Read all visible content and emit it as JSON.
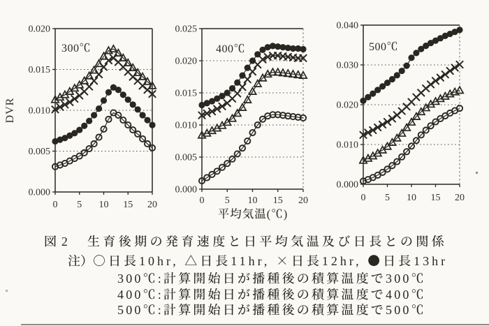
{
  "page": {
    "background": "#faf9f6",
    "ink": "#29271f"
  },
  "figure": {
    "ylabel": "DVR",
    "xlabel": "平均気温(℃)",
    "caption": {
      "fig_label": "図 2",
      "title": "生育後期の発育速度と日平均気温及び日長との関係",
      "note_label": "注）",
      "legend_line": "○日長10hr, △日長11hr, ×日長12hr, ●日長13hr",
      "notes": [
        "300℃:計算開始日が播種後の積算温度で300℃",
        "400℃:計算開始日が播種後の積算温度で400℃",
        "500℃:計算開始日が播種後の積算温度で500℃"
      ]
    }
  },
  "chart_data": [
    {
      "type": "scatter",
      "title": "300℃",
      "xlabel": "平均気温(℃)",
      "ylabel": "DVR",
      "xlim": [
        0,
        20
      ],
      "ylim": [
        0,
        0.02
      ],
      "x_ticks": [
        0,
        5,
        10,
        15,
        20
      ],
      "y_ticks": [
        "0.000",
        "0.005",
        "0.010",
        "0.015",
        "0.020"
      ],
      "grid": true,
      "legend_position": "none",
      "x": [
        0,
        1,
        2,
        3,
        4,
        5,
        6,
        7,
        8,
        9,
        10,
        11,
        12,
        13,
        14,
        15,
        16,
        17,
        18,
        19,
        20
      ],
      "series": [
        {
          "name": "日長12hr",
          "marker": "cross",
          "values": [
            0.0101,
            0.0104,
            0.0107,
            0.011,
            0.0114,
            0.0118,
            0.0123,
            0.0129,
            0.0136,
            0.0144,
            0.0153,
            0.0161,
            0.0164,
            0.0159,
            0.0153,
            0.0147,
            0.0141,
            0.0136,
            0.013,
            0.0125,
            0.012
          ]
        },
        {
          "name": "日長11hr",
          "marker": "open-triangle",
          "values": [
            0.0113,
            0.0116,
            0.0119,
            0.0123,
            0.0127,
            0.0131,
            0.0136,
            0.0142,
            0.0149,
            0.0157,
            0.0166,
            0.0173,
            0.0175,
            0.017,
            0.0164,
            0.0158,
            0.0152,
            0.0146,
            0.0141,
            0.0135,
            0.013
          ]
        },
        {
          "name": "日長13hr",
          "marker": "filled-circle",
          "values": [
            0.0062,
            0.0064,
            0.0066,
            0.0069,
            0.0072,
            0.0076,
            0.0081,
            0.0087,
            0.0094,
            0.0102,
            0.0112,
            0.0122,
            0.0128,
            0.0125,
            0.0119,
            0.0113,
            0.0107,
            0.0101,
            0.0094,
            0.0088,
            0.0082
          ]
        },
        {
          "name": "日長10hr",
          "marker": "open-circle",
          "values": [
            0.0031,
            0.0033,
            0.0035,
            0.0038,
            0.0041,
            0.0044,
            0.0048,
            0.0053,
            0.0059,
            0.0067,
            0.0077,
            0.0089,
            0.0097,
            0.0094,
            0.0088,
            0.0082,
            0.0076,
            0.0071,
            0.0065,
            0.0059,
            0.0054
          ]
        }
      ]
    },
    {
      "type": "scatter",
      "title": "400℃",
      "xlabel": "平均気温(℃)",
      "ylabel": "DVR",
      "xlim": [
        0,
        20
      ],
      "ylim": [
        0,
        0.025
      ],
      "x_ticks": [
        0,
        5,
        10,
        15,
        20
      ],
      "y_ticks": [
        "0.000",
        "0.005",
        "0.010",
        "0.015",
        "0.020",
        "0.025"
      ],
      "grid": true,
      "legend_position": "none",
      "x": [
        0,
        1,
        2,
        3,
        4,
        5,
        6,
        7,
        8,
        9,
        10,
        11,
        12,
        13,
        14,
        15,
        16,
        17,
        18,
        19,
        20
      ],
      "series": [
        {
          "name": "日長12hr",
          "marker": "cross",
          "values": [
            0.0115,
            0.0118,
            0.0121,
            0.0125,
            0.0129,
            0.0134,
            0.0141,
            0.0149,
            0.0159,
            0.0171,
            0.0183,
            0.0194,
            0.0202,
            0.0206,
            0.0208,
            0.0208,
            0.0207,
            0.0206,
            0.0205,
            0.0204,
            0.0204
          ]
        },
        {
          "name": "日長11hr",
          "marker": "open-triangle",
          "values": [
            0.0084,
            0.0087,
            0.0091,
            0.0095,
            0.0099,
            0.0104,
            0.011,
            0.0118,
            0.0127,
            0.0139,
            0.0152,
            0.0164,
            0.0173,
            0.0179,
            0.0182,
            0.0182,
            0.0181,
            0.018,
            0.0179,
            0.0178,
            0.0177
          ]
        },
        {
          "name": "日長13hr",
          "marker": "filled-circle",
          "values": [
            0.0131,
            0.0134,
            0.0137,
            0.0141,
            0.0145,
            0.015,
            0.0157,
            0.0166,
            0.0177,
            0.0189,
            0.02,
            0.021,
            0.0217,
            0.0221,
            0.0223,
            0.0222,
            0.0221,
            0.022,
            0.0219,
            0.0219,
            0.0218
          ]
        },
        {
          "name": "日長10hr",
          "marker": "open-circle",
          "values": [
            0.0013,
            0.0018,
            0.0023,
            0.0028,
            0.0034,
            0.004,
            0.0047,
            0.0055,
            0.0064,
            0.0075,
            0.0088,
            0.01,
            0.0109,
            0.0114,
            0.0116,
            0.0116,
            0.0115,
            0.0114,
            0.0113,
            0.0112,
            0.0111
          ]
        }
      ]
    },
    {
      "type": "scatter",
      "title": "500℃",
      "xlabel": "平均気温(℃)",
      "ylabel": "DVR",
      "xlim": [
        0,
        20
      ],
      "ylim": [
        0,
        0.04
      ],
      "x_ticks": [
        0,
        5,
        10,
        15,
        20
      ],
      "y_ticks": [
        "0.000",
        "0.010",
        "0.020",
        "0.030",
        "0.040"
      ],
      "grid": true,
      "legend_position": "none",
      "x": [
        0,
        1,
        2,
        3,
        4,
        5,
        6,
        7,
        8,
        9,
        10,
        11,
        12,
        13,
        14,
        15,
        16,
        17,
        18,
        19,
        20
      ],
      "series": [
        {
          "name": "日長12hr",
          "marker": "cross",
          "values": [
            0.0124,
            0.013,
            0.0136,
            0.0143,
            0.015,
            0.0157,
            0.0165,
            0.0174,
            0.0184,
            0.0195,
            0.0207,
            0.0219,
            0.023,
            0.0241,
            0.0251,
            0.026,
            0.0268,
            0.0276,
            0.0285,
            0.0293,
            0.0301
          ]
        },
        {
          "name": "日長11hr",
          "marker": "open-triangle",
          "values": [
            0.006,
            0.0065,
            0.0071,
            0.0078,
            0.0086,
            0.0095,
            0.0105,
            0.0116,
            0.0128,
            0.0142,
            0.0156,
            0.017,
            0.0182,
            0.0192,
            0.0201,
            0.0208,
            0.0215,
            0.0221,
            0.0227,
            0.0232,
            0.0236
          ]
        },
        {
          "name": "日長13hr",
          "marker": "filled-circle",
          "values": [
            0.021,
            0.0219,
            0.0228,
            0.0237,
            0.0246,
            0.0255,
            0.0264,
            0.0274,
            0.0285,
            0.0298,
            0.0318,
            0.033,
            0.034,
            0.0348,
            0.0355,
            0.0361,
            0.0367,
            0.0373,
            0.0378,
            0.0383,
            0.0388
          ]
        },
        {
          "name": "日長10hr",
          "marker": "open-circle",
          "values": [
            0.0008,
            0.0012,
            0.0017,
            0.0023,
            0.003,
            0.0038,
            0.0047,
            0.0057,
            0.0069,
            0.0082,
            0.0096,
            0.011,
            0.0124,
            0.0136,
            0.0147,
            0.0157,
            0.0165,
            0.0172,
            0.0179,
            0.0185,
            0.0191
          ]
        }
      ]
    }
  ]
}
